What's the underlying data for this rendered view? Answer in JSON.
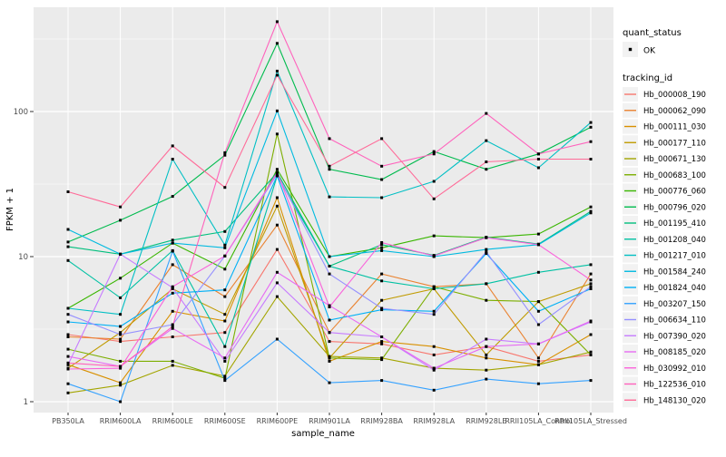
{
  "chart_data": {
    "type": "line",
    "title": "",
    "xlabel": "sample_name",
    "ylabel": "FPKM + 1",
    "y_scale": "log10",
    "ylim": [
      1,
      512
    ],
    "yticks": [
      "1",
      "10",
      "100"
    ],
    "ytick_values": [
      1,
      10,
      100
    ],
    "grid": "on",
    "panel_bg": "#EBEBEB",
    "grid_color": "#FFFFFF",
    "axis_text_color": "#4D4D4D",
    "tick_mark_color": "#333333",
    "point_color": "#000000",
    "legend_key_bg": "#F2F2F2",
    "categories": [
      "PB350LA",
      "RRIM600LA",
      "RRIM600LE",
      "RRIM600SE",
      "RRIM600PE",
      "RRIM901LA",
      "RRIM928BA",
      "RRIM928LA",
      "RRIM928LE",
      "RRII105LA_Control",
      "RRII105LA_Stressed"
    ],
    "legend": {
      "quant_status_title": "quant_status",
      "quant_status_items": [
        {
          "label": "OK"
        }
      ],
      "tracking_id_title": "tracking_id"
    },
    "series": [
      {
        "name": "Hb_000008_190",
        "color": "#F8766D",
        "values": [
          2.9,
          2.6,
          2.8,
          3.0,
          11.2,
          2.6,
          2.5,
          2.1,
          2.4,
          1.9,
          2.1
        ]
      },
      {
        "name": "Hb_000062_090",
        "color": "#EA8331",
        "values": [
          2.8,
          2.7,
          8.8,
          5.3,
          16.5,
          3.0,
          7.6,
          6.2,
          6.5,
          2.0,
          7.6
        ]
      },
      {
        "name": "Hb_000111_030",
        "color": "#D89000",
        "values": [
          1.8,
          1.35,
          4.2,
          3.6,
          25.5,
          1.9,
          2.6,
          2.4,
          2.0,
          1.8,
          2.9
        ]
      },
      {
        "name": "Hb_000177_110",
        "color": "#C09B00",
        "values": [
          1.7,
          3.0,
          6.0,
          4.0,
          22.3,
          2.0,
          5.0,
          6.0,
          2.1,
          4.9,
          6.5
        ]
      },
      {
        "name": "Hb_000671_130",
        "color": "#A3A500",
        "values": [
          1.15,
          1.3,
          1.78,
          1.5,
          5.3,
          2.05,
          2.0,
          1.7,
          1.65,
          1.8,
          2.2
        ]
      },
      {
        "name": "Hb_000683_100",
        "color": "#7CAE00",
        "values": [
          2.3,
          1.9,
          1.9,
          1.45,
          70,
          2.0,
          1.95,
          6.2,
          5.0,
          4.9,
          2.1
        ]
      },
      {
        "name": "Hb_000776_060",
        "color": "#39B600",
        "values": [
          4.4,
          7.1,
          12.4,
          8.2,
          40,
          10.0,
          11.5,
          13.9,
          13.5,
          14.3,
          22
        ]
      },
      {
        "name": "Hb_000796_020",
        "color": "#00BB4E",
        "values": [
          12.6,
          17.8,
          26,
          50,
          295,
          40,
          34,
          53,
          40,
          51,
          78
        ]
      },
      {
        "name": "Hb_001195_410",
        "color": "#00BF7D",
        "values": [
          11.7,
          10.4,
          13,
          14.9,
          38,
          8.6,
          12.1,
          10.2,
          13.6,
          12.2,
          20.5
        ]
      },
      {
        "name": "Hb_001208_040",
        "color": "#00C1A3",
        "values": [
          9.4,
          5.2,
          11,
          2.4,
          36,
          8.6,
          6.8,
          6.0,
          6.5,
          7.8,
          8.8
        ]
      },
      {
        "name": "Hb_001217_010",
        "color": "#00BFC4",
        "values": [
          4.4,
          4.0,
          47,
          12,
          190,
          25.8,
          25.5,
          33,
          63,
          41,
          84
        ]
      },
      {
        "name": "Hb_001584_240",
        "color": "#00BAE0",
        "values": [
          15.4,
          10.4,
          12.4,
          11.5,
          101,
          10.0,
          11.0,
          10.0,
          11.2,
          12.1,
          20
        ]
      },
      {
        "name": "Hb_001824_040",
        "color": "#00B0F6",
        "values": [
          3.55,
          3.3,
          5.6,
          5.9,
          36,
          3.65,
          4.3,
          4.2,
          10.5,
          4.2,
          6.0
        ]
      },
      {
        "name": "Hb_003207_150",
        "color": "#35A2FF",
        "values": [
          1.33,
          1.0,
          10.9,
          1.4,
          2.7,
          1.35,
          1.4,
          1.2,
          1.43,
          1.33,
          1.4
        ]
      },
      {
        "name": "Hb_006634_110",
        "color": "#9590FF",
        "values": [
          4.0,
          2.9,
          3.4,
          10.1,
          37,
          7.6,
          4.4,
          4.0,
          10.8,
          3.4,
          6.2
        ]
      },
      {
        "name": "Hb_007390_020",
        "color": "#C77CFF",
        "values": [
          1.8,
          10.4,
          6.1,
          1.9,
          6.6,
          3.0,
          2.8,
          1.65,
          2.7,
          2.5,
          3.55
        ]
      },
      {
        "name": "Hb_008185_020",
        "color": "#E76BF3",
        "values": [
          2.05,
          1.75,
          3.2,
          2.0,
          7.8,
          4.6,
          2.8,
          1.7,
          2.4,
          2.5,
          3.6
        ]
      },
      {
        "name": "Hb_030992_010",
        "color": "#FA62DB",
        "values": [
          1.68,
          1.7,
          6.2,
          10.1,
          38,
          4.5,
          12.5,
          10.1,
          13.5,
          12.1,
          6.9
        ]
      },
      {
        "name": "Hb_122536_010",
        "color": "#FF62BC",
        "values": [
          1.85,
          1.75,
          3.3,
          52,
          416,
          65,
          42,
          51,
          97,
          51,
          62
        ]
      },
      {
        "name": "Hb_148130_020",
        "color": "#FF6A98",
        "values": [
          28,
          22,
          58,
          30,
          178,
          42,
          65,
          25,
          45,
          47,
          47
        ]
      }
    ]
  }
}
